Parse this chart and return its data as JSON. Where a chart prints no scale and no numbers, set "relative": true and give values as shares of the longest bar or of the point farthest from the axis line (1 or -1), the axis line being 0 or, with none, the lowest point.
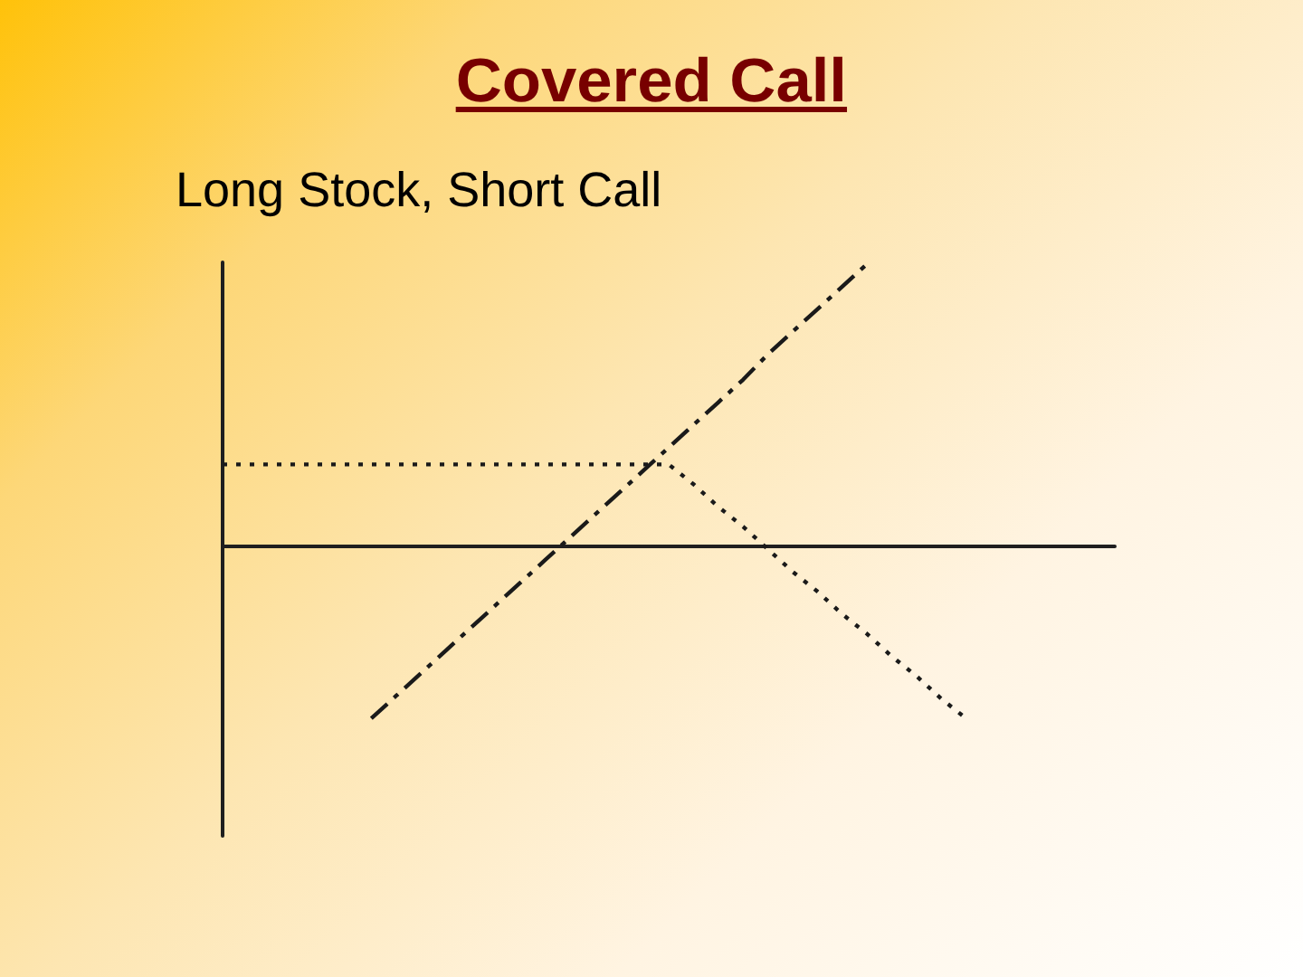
{
  "chart_data": {
    "type": "line",
    "title": "Covered Call",
    "subtitle": "Long Stock, Short Call",
    "relative": true,
    "tick_labels": false,
    "marker": "none",
    "categories": [
      null,
      null,
      null,
      null,
      null,
      null,
      null,
      null,
      null,
      null,
      null,
      null,
      null,
      null,
      null,
      null,
      null,
      null,
      null,
      null,
      null,
      null,
      null,
      null,
      null,
      null,
      null,
      null,
      null,
      null,
      null,
      null,
      null,
      null,
      null,
      null,
      null
    ],
    "series": [
      {
        "color": "#1a1a1a",
        "line_style": "dashed",
        "values": [
          null,
          null,
          null,
          null,
          null,
          null,
          -0.61,
          -0.53,
          -0.45,
          -0.37,
          -0.29,
          -0.21,
          -0.13,
          -0.05,
          0.03,
          0.11,
          0.19,
          0.27,
          0.35,
          0.43,
          0.51,
          0.59,
          0.68,
          0.76,
          0.84,
          0.92,
          1,
          null,
          null,
          null,
          null,
          null,
          null,
          null,
          null,
          null,
          null
        ]
      },
      {
        "color": "#1a1a1a",
        "line_style": "dotted",
        "values": [
          0.29,
          0.29,
          0.29,
          0.29,
          0.29,
          0.29,
          0.29,
          0.29,
          0.29,
          0.29,
          0.29,
          0.29,
          0.29,
          0.29,
          0.29,
          0.29,
          0.29,
          0.29,
          0.29,
          0.22,
          0.14,
          0.07,
          -0.01,
          -0.09,
          -0.16,
          -0.24,
          -0.31,
          -0.39,
          -0.46,
          -0.54,
          -0.61,
          null,
          null,
          null,
          null,
          null,
          null
        ]
      }
    ]
  }
}
